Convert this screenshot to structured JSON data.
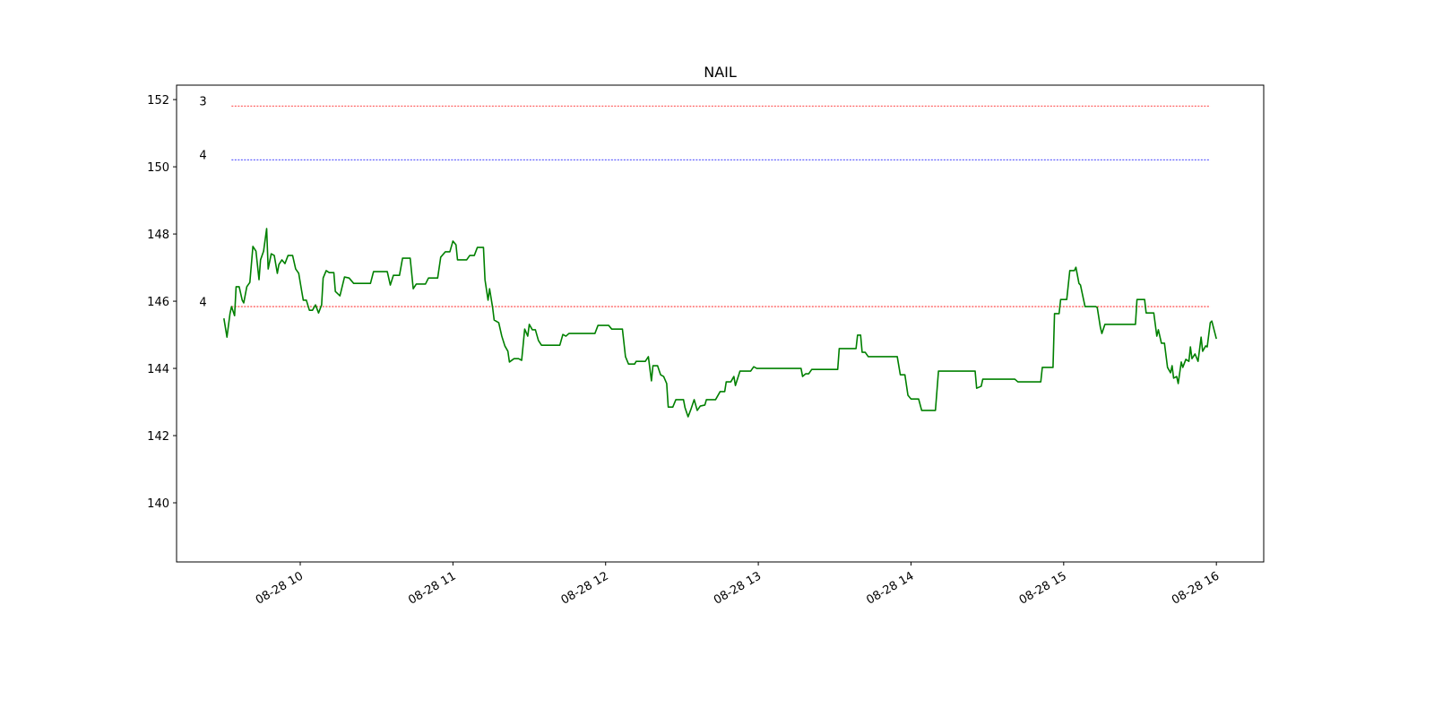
{
  "chart_data": {
    "type": "line",
    "title": "NAIL",
    "x": [
      9.5,
      9.52,
      9.54,
      9.55,
      9.57,
      9.58,
      9.6,
      9.62,
      9.63,
      9.65,
      9.67,
      9.69,
      9.71,
      9.73,
      9.74,
      9.76,
      9.78,
      9.79,
      9.81,
      9.83,
      9.85,
      9.86,
      9.88,
      9.9,
      9.92,
      9.95,
      9.97,
      9.99,
      10.01,
      10.02,
      10.04,
      10.06,
      10.08,
      10.1,
      10.12,
      10.14,
      10.15,
      10.17,
      10.19,
      10.22,
      10.23,
      10.26,
      10.29,
      10.32,
      10.35,
      10.46,
      10.48,
      10.57,
      10.59,
      10.61,
      10.65,
      10.67,
      10.72,
      10.74,
      10.76,
      10.82,
      10.84,
      10.9,
      10.92,
      10.95,
      10.98,
      11.0,
      11.02,
      11.03,
      11.09,
      11.11,
      11.14,
      11.16,
      11.2,
      11.21,
      11.23,
      11.24,
      11.26,
      11.27,
      11.3,
      11.32,
      11.34,
      11.36,
      11.37,
      11.4,
      11.43,
      11.45,
      11.47,
      11.49,
      11.5,
      11.52,
      11.54,
      11.56,
      11.58,
      11.7,
      11.72,
      11.74,
      11.76,
      11.93,
      11.95,
      12.02,
      12.04,
      12.11,
      12.13,
      12.15,
      12.19,
      12.2,
      12.26,
      12.28,
      12.3,
      12.31,
      12.34,
      12.36,
      12.38,
      12.4,
      12.41,
      12.44,
      12.46,
      12.51,
      12.52,
      12.54,
      12.56,
      12.58,
      12.6,
      12.62,
      12.65,
      12.66,
      12.72,
      12.75,
      12.78,
      12.79,
      12.82,
      12.84,
      12.85,
      12.88,
      12.95,
      12.97,
      12.99,
      13.28,
      13.29,
      13.31,
      13.33,
      13.35,
      13.52,
      13.53,
      13.64,
      13.65,
      13.67,
      13.68,
      13.7,
      13.72,
      13.91,
      13.93,
      13.96,
      13.98,
      14.0,
      14.05,
      14.07,
      14.16,
      14.18,
      14.42,
      14.43,
      14.46,
      14.47,
      14.68,
      14.7,
      14.85,
      14.86,
      14.93,
      14.94,
      14.97,
      14.98,
      15.02,
      15.04,
      15.07,
      15.08,
      15.1,
      15.11,
      15.13,
      15.14,
      15.21,
      15.22,
      15.24,
      15.25,
      15.27,
      15.47,
      15.48,
      15.53,
      15.54,
      15.59,
      15.61,
      15.62,
      15.64,
      15.66,
      15.68,
      15.7,
      15.71,
      15.72,
      15.74,
      15.75,
      15.77,
      15.78,
      15.8,
      15.82,
      15.83,
      15.84,
      15.86,
      15.88,
      15.9,
      15.91,
      15.93,
      15.94,
      15.96,
      15.97,
      16.0
    ],
    "series": [
      {
        "color": "#008000",
        "values": [
          145.49,
          144.93,
          145.63,
          145.84,
          145.57,
          146.43,
          146.43,
          146.03,
          145.95,
          146.43,
          146.56,
          147.63,
          147.49,
          146.64,
          147.23,
          147.49,
          148.16,
          146.96,
          147.41,
          147.36,
          146.83,
          147.09,
          147.23,
          147.12,
          147.36,
          147.36,
          146.96,
          146.83,
          146.29,
          146.03,
          146.03,
          145.73,
          145.73,
          145.89,
          145.65,
          145.89,
          146.69,
          146.91,
          146.85,
          146.85,
          146.29,
          146.16,
          146.72,
          146.69,
          146.53,
          146.53,
          146.88,
          146.88,
          146.48,
          146.77,
          146.77,
          147.28,
          147.28,
          146.37,
          146.51,
          146.51,
          146.69,
          146.69,
          147.31,
          147.47,
          147.47,
          147.79,
          147.68,
          147.23,
          147.23,
          147.36,
          147.36,
          147.6,
          147.6,
          146.64,
          146.03,
          146.37,
          145.81,
          145.44,
          145.36,
          144.96,
          144.67,
          144.51,
          144.19,
          144.29,
          144.29,
          144.24,
          145.17,
          144.96,
          145.31,
          145.15,
          145.15,
          144.83,
          144.69,
          144.69,
          145.01,
          144.96,
          145.04,
          145.04,
          145.28,
          145.28,
          145.17,
          145.17,
          144.35,
          144.13,
          144.13,
          144.21,
          144.21,
          144.35,
          143.63,
          144.08,
          144.08,
          143.81,
          143.76,
          143.55,
          142.85,
          142.85,
          143.07,
          143.07,
          142.83,
          142.56,
          142.8,
          143.07,
          142.75,
          142.88,
          142.91,
          143.07,
          143.07,
          143.31,
          143.31,
          143.6,
          143.6,
          143.76,
          143.49,
          143.92,
          143.92,
          144.05,
          144.0,
          144.0,
          143.76,
          143.84,
          143.84,
          143.97,
          143.97,
          144.59,
          144.59,
          144.99,
          144.99,
          144.48,
          144.48,
          144.35,
          144.35,
          143.81,
          143.81,
          143.2,
          143.09,
          143.09,
          142.75,
          142.75,
          143.92,
          143.92,
          143.41,
          143.47,
          143.68,
          143.68,
          143.6,
          143.6,
          144.03,
          144.03,
          145.63,
          145.63,
          146.05,
          146.05,
          146.91,
          146.91,
          147.01,
          146.53,
          146.48,
          146.05,
          145.84,
          145.84,
          145.81,
          145.23,
          145.04,
          145.31,
          145.31,
          146.05,
          146.05,
          145.65,
          145.65,
          144.96,
          145.15,
          144.75,
          144.75,
          144.03,
          143.87,
          144.08,
          143.71,
          143.76,
          143.55,
          144.19,
          144.03,
          144.27,
          144.21,
          144.64,
          144.29,
          144.43,
          144.21,
          144.93,
          144.51,
          144.67,
          144.64,
          145.36,
          145.41,
          144.88
        ]
      }
    ],
    "hlines": [
      {
        "value": 151.81,
        "label": "3",
        "color": "red",
        "xmin": 9.55,
        "xmax": 15.96
      },
      {
        "value": 150.21,
        "label": "4",
        "color": "blue",
        "xmin": 9.55,
        "xmax": 15.96
      },
      {
        "value": 145.84,
        "label": "4",
        "color": "red",
        "xmin": 9.55,
        "xmax": 15.96
      }
    ],
    "xlim": [
      9.19,
      16.31
    ],
    "ylim": [
      138.24,
      152.43
    ],
    "xticks": [
      {
        "value": 10,
        "label": "08-28 10"
      },
      {
        "value": 11,
        "label": "08-28 11"
      },
      {
        "value": 12,
        "label": "08-28 12"
      },
      {
        "value": 13,
        "label": "08-28 13"
      },
      {
        "value": 14,
        "label": "08-28 14"
      },
      {
        "value": 15,
        "label": "08-28 15"
      },
      {
        "value": 16,
        "label": "08-28 16"
      }
    ],
    "yticks": [
      140,
      142,
      144,
      146,
      148,
      150,
      152
    ]
  }
}
